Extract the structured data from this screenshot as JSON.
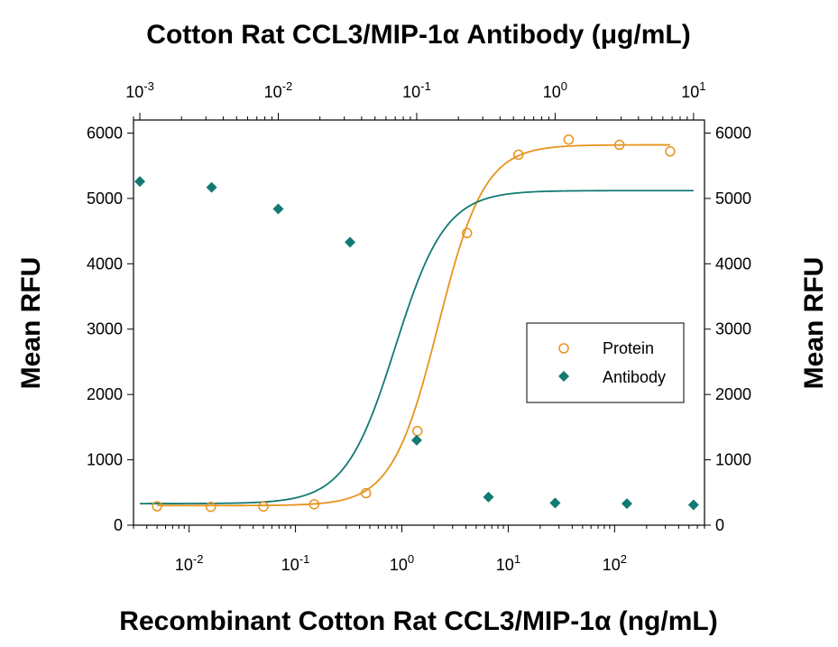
{
  "chart_data": {
    "type": "scatter",
    "title": "Cotton Rat CCL3/MIP-1α Antibody (μg/mL)",
    "xlabel": "Recombinant Cotton Rat CCL3/MIP-1α (ng/mL)",
    "ylabel": "Mean RFU",
    "ylabel_right": "Mean RFU",
    "x_scale": "log",
    "xlim": [
      0.003,
      700
    ],
    "ylim": [
      0,
      6200
    ],
    "x2_scale": "log",
    "x2lim": [
      0.0009,
      12
    ],
    "y_ticks": [
      0,
      1000,
      2000,
      3000,
      4000,
      5000,
      6000
    ],
    "x_ticks": [
      {
        "value": 0.01,
        "base": "10",
        "exp": "-2"
      },
      {
        "value": 0.1,
        "base": "10",
        "exp": "-1"
      },
      {
        "value": 1,
        "base": "10",
        "exp": "0"
      },
      {
        "value": 10,
        "base": "10",
        "exp": "1"
      },
      {
        "value": 100,
        "base": "10",
        "exp": "2"
      }
    ],
    "x2_ticks": [
      {
        "value": 0.001,
        "base": "10",
        "exp": "-3"
      },
      {
        "value": 0.01,
        "base": "10",
        "exp": "-2"
      },
      {
        "value": 0.1,
        "base": "10",
        "exp": "-1"
      },
      {
        "value": 1,
        "base": "10",
        "exp": "0"
      },
      {
        "value": 10,
        "base": "10",
        "exp": "1"
      }
    ],
    "legend_position": "right-middle",
    "series": [
      {
        "name": "Protein",
        "axis": "bottom",
        "marker": "open-circle",
        "color": "#E8931E",
        "x": [
          0.005,
          0.016,
          0.05,
          0.15,
          0.46,
          1.4,
          4.1,
          12.5,
          37,
          111,
          333
        ],
        "y": [
          290,
          280,
          285,
          320,
          490,
          1440,
          4470,
          5670,
          5900,
          5820,
          5720
        ],
        "fit": {
          "bottom": 300,
          "top": 5820,
          "ec50": 2.2,
          "hill": 2.0
        }
      },
      {
        "name": "Antibody",
        "axis": "top",
        "marker": "filled-diamond",
        "color": "#137A73",
        "x": [
          0.001,
          0.0033,
          0.01,
          0.033,
          0.1,
          0.33,
          1,
          3.3,
          10
        ],
        "y": [
          5260,
          5170,
          4840,
          4330,
          1300,
          430,
          340,
          330,
          310
        ],
        "fit": {
          "bottom": 330,
          "top": 5120,
          "ec50": 0.07,
          "hill": 2.4
        }
      }
    ]
  }
}
